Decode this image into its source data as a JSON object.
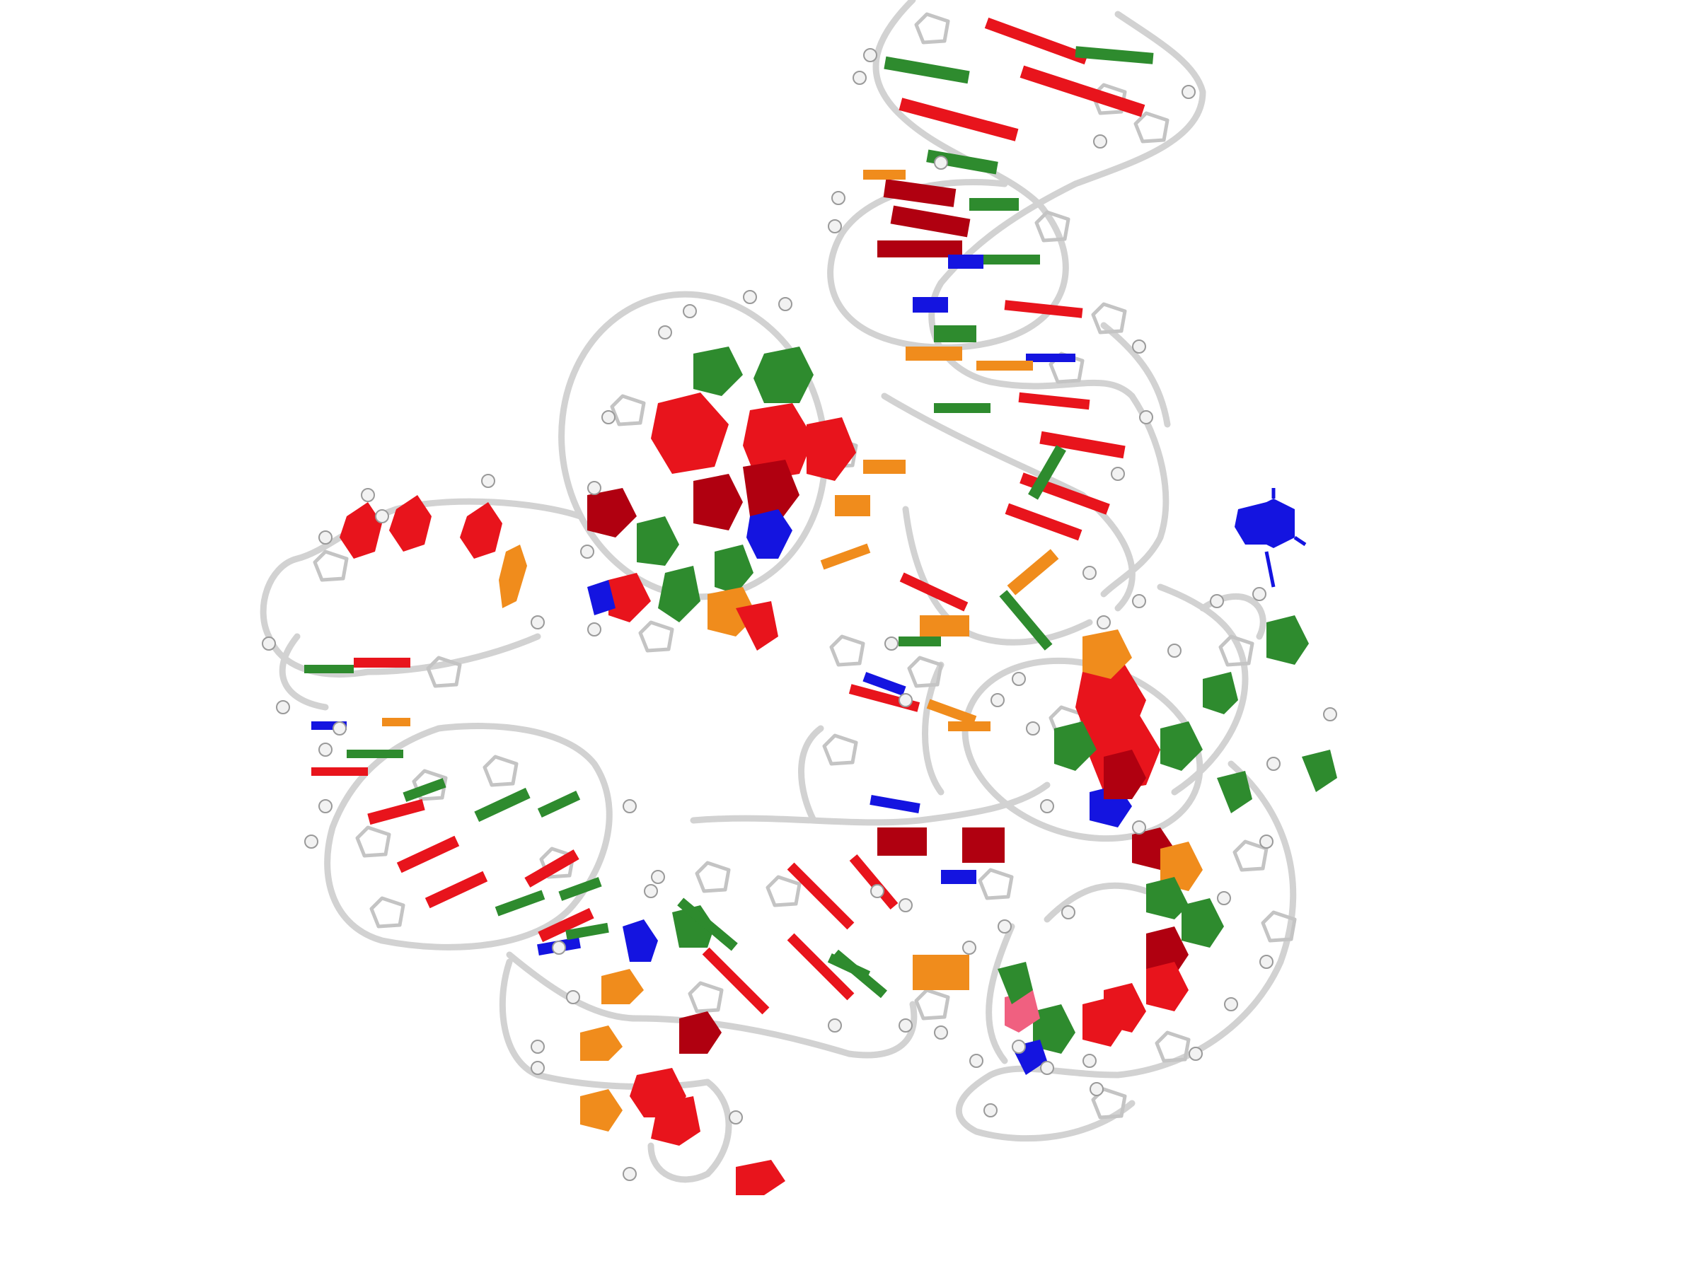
{
  "figure": {
    "subject": "rna-3d-cartoon-model",
    "colors": {
      "background": "#ffffff",
      "backbone": "#d2d2d2",
      "phosphate": "#f2f2f2",
      "adenine": "#e8141c",
      "adenine_dark": "#b00010",
      "guanine": "#2e8b2e",
      "cytosine": "#1414e0",
      "uracil": "#f08c1c"
    }
  }
}
